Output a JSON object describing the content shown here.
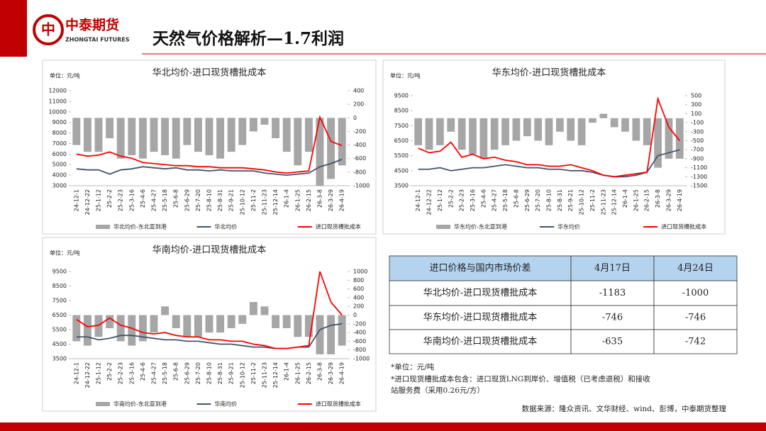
{
  "header": {
    "brand": "中泰期货",
    "brand_en": "ZHONGTAI FUTURES",
    "title": "天然气价格解析—1.7利润"
  },
  "chart_data": [
    {
      "type": "combo",
      "title": "华北均价-进口现货槽批成本",
      "unit": "单位：元/吨",
      "categories": [
        "24-12-1",
        "24-12-22",
        "25-1-12",
        "25-2-2",
        "25-2-23",
        "25-3-16",
        "25-4-6",
        "25-4-27",
        "25-5-18",
        "25-6-8",
        "25-6-29",
        "25-7-20",
        "25-8-10",
        "25-8-31",
        "25-9-21",
        "25-10-12",
        "25-11-2",
        "25-11-23",
        "25-12-14",
        "26-1-4",
        "26-1-25",
        "26-2-15",
        "26-3-8",
        "26-3-29",
        "26-4-19"
      ],
      "series": [
        {
          "name": "华北均价-东北亚到港",
          "color": "#a6a6a6",
          "type": "bar",
          "axis": "y2",
          "values": [
            -400,
            -500,
            -500,
            -300,
            -600,
            -550,
            -600,
            -500,
            -550,
            -600,
            -400,
            -500,
            -550,
            -600,
            -500,
            -400,
            -200,
            -100,
            -300,
            -500,
            -700,
            -500,
            -1000,
            -900,
            -700
          ]
        },
        {
          "name": "华北均价",
          "color": "#44546a",
          "type": "line",
          "values": [
            4600,
            4500,
            4500,
            4100,
            4500,
            4600,
            4800,
            4700,
            4600,
            4700,
            4500,
            4500,
            4400,
            4500,
            4400,
            4400,
            4400,
            4200,
            4100,
            4000,
            4100,
            4200,
            4800,
            5100,
            5500
          ]
        },
        {
          "name": "进口现货槽批成本",
          "color": "#ff0000",
          "type": "line",
          "values": [
            6000,
            5800,
            5900,
            6200,
            5800,
            5600,
            5200,
            5100,
            5000,
            4900,
            4900,
            4800,
            4800,
            4700,
            4700,
            4700,
            4600,
            4500,
            4300,
            4200,
            4300,
            4400,
            9500,
            7200,
            6800
          ]
        }
      ],
      "ylim": [
        3000,
        12000
      ],
      "yticks": [
        3000,
        4000,
        5000,
        6000,
        7000,
        8000,
        9000,
        10000,
        11000,
        12000
      ],
      "y2lim": [
        -1000,
        400
      ],
      "y2ticks": [
        -1000,
        -800,
        -600,
        -400,
        -200,
        0,
        200,
        400
      ]
    },
    {
      "type": "combo",
      "title": "华东均价-进口现货槽批成本",
      "unit": "单位：元/吨",
      "categories": [
        "24-12-1",
        "24-12-22",
        "25-1-12",
        "25-2-2",
        "25-2-23",
        "25-3-16",
        "25-4-6",
        "25-4-27",
        "25-5-18",
        "25-6-8",
        "25-6-29",
        "25-7-20",
        "25-8-10",
        "25-8-31",
        "25-9-21",
        "25-10-12",
        "25-11-2",
        "25-11-23",
        "25-12-14",
        "26-1-4",
        "26-1-25",
        "26-2-15",
        "26-3-8",
        "26-3-29",
        "26-4-19"
      ],
      "series": [
        {
          "name": "华东均价-东北亚到港",
          "color": "#a6a6a6",
          "type": "bar",
          "axis": "y2",
          "values": [
            -600,
            -700,
            -600,
            -300,
            -700,
            -800,
            -900,
            -700,
            -600,
            -500,
            -400,
            -500,
            -600,
            -300,
            -500,
            -600,
            -100,
            100,
            -200,
            -300,
            -500,
            -600,
            -1100,
            -900,
            -900
          ]
        },
        {
          "name": "华东均价",
          "color": "#44546a",
          "type": "line",
          "values": [
            4600,
            4600,
            4700,
            4500,
            4600,
            4700,
            4700,
            4800,
            4900,
            4800,
            4700,
            4700,
            4600,
            4600,
            4500,
            4500,
            4400,
            4200,
            4100,
            4100,
            4200,
            4400,
            5500,
            5700,
            5900
          ]
        },
        {
          "name": "进口现货槽批成本",
          "color": "#ff0000",
          "type": "line",
          "values": [
            6000,
            5700,
            5800,
            6400,
            5400,
            5600,
            5300,
            5400,
            5200,
            5100,
            4900,
            4900,
            4800,
            4800,
            4900,
            4700,
            4500,
            4200,
            4100,
            4200,
            4300,
            4400,
            9300,
            7400,
            6500
          ]
        }
      ],
      "ylim": [
        3500,
        9500
      ],
      "yticks": [
        3500,
        4500,
        5500,
        6500,
        7500,
        8500,
        9500
      ],
      "y2lim": [
        -1500,
        500
      ],
      "y2ticks": [
        -1500,
        -1300,
        -1100,
        -900,
        -700,
        -500,
        -300,
        -100,
        100,
        300,
        500
      ]
    },
    {
      "type": "combo",
      "title": "华南均价-进口现货槽批成本",
      "unit": "单位：元/吨",
      "categories": [
        "24-12-1",
        "24-12-22",
        "25-1-12",
        "25-2-2",
        "25-2-23",
        "25-3-16",
        "25-4-6",
        "25-4-27",
        "25-5-18",
        "25-6-8",
        "25-6-29",
        "25-7-20",
        "25-8-10",
        "25-8-31",
        "25-9-21",
        "25-10-12",
        "25-11-2",
        "25-11-23",
        "25-12-14",
        "26-1-4",
        "26-1-25",
        "26-2-15",
        "26-3-8",
        "26-3-29",
        "26-4-19"
      ],
      "series": [
        {
          "name": "华南均价-东北亚到港",
          "color": "#a6a6a6",
          "type": "bar",
          "axis": "y2",
          "values": [
            -600,
            -700,
            -500,
            -300,
            -600,
            -700,
            -600,
            -400,
            200,
            -300,
            -500,
            -500,
            -400,
            -400,
            -300,
            -200,
            300,
            200,
            -300,
            -300,
            -500,
            -500,
            -900,
            -900,
            -700
          ]
        },
        {
          "name": "华南均价",
          "color": "#44546a",
          "type": "line",
          "values": [
            5000,
            5000,
            4800,
            4900,
            5100,
            5100,
            5000,
            4900,
            4800,
            4800,
            4700,
            4700,
            4600,
            4500,
            4500,
            4400,
            4300,
            4300,
            4200,
            4200,
            4300,
            4300,
            5500,
            5800,
            5900
          ]
        },
        {
          "name": "进口现货槽批成本",
          "color": "#ff0000",
          "type": "line",
          "values": [
            6200,
            5700,
            5800,
            6300,
            5800,
            5600,
            5300,
            5200,
            5300,
            5100,
            5000,
            5000,
            4800,
            4800,
            4700,
            4700,
            4500,
            4400,
            4200,
            4200,
            4300,
            4400,
            9500,
            7400,
            6500
          ]
        }
      ],
      "ylim": [
        3500,
        9500
      ],
      "yticks": [
        3500,
        4500,
        5500,
        6500,
        7500,
        8500,
        9500
      ],
      "y2lim": [
        -1000,
        1000
      ],
      "y2ticks": [
        -1000,
        -800,
        -600,
        -400,
        -200,
        0,
        200,
        400,
        600,
        800,
        1000
      ]
    }
  ],
  "table": {
    "header": [
      "进口价格与国内市场价差",
      "4月17日",
      "4月24日"
    ],
    "rows": [
      [
        "华北均价-进口现货槽批成本",
        -1183,
        -1000
      ],
      [
        "华东均价-进口现货槽批成本",
        -746,
        -746
      ],
      [
        "华南均价-进口现货槽批成本",
        -635,
        -742
      ]
    ]
  },
  "notes": [
    "*单位：元/吨",
    "*进口现货槽批成本包含：进口现货LNG到岸价、增值税（已考虑退税）和接收",
    "站服务费（采用0.26元/方）"
  ],
  "source": "数据来源：隆众资讯、文华财经、wind、彭博，中泰期货整理"
}
